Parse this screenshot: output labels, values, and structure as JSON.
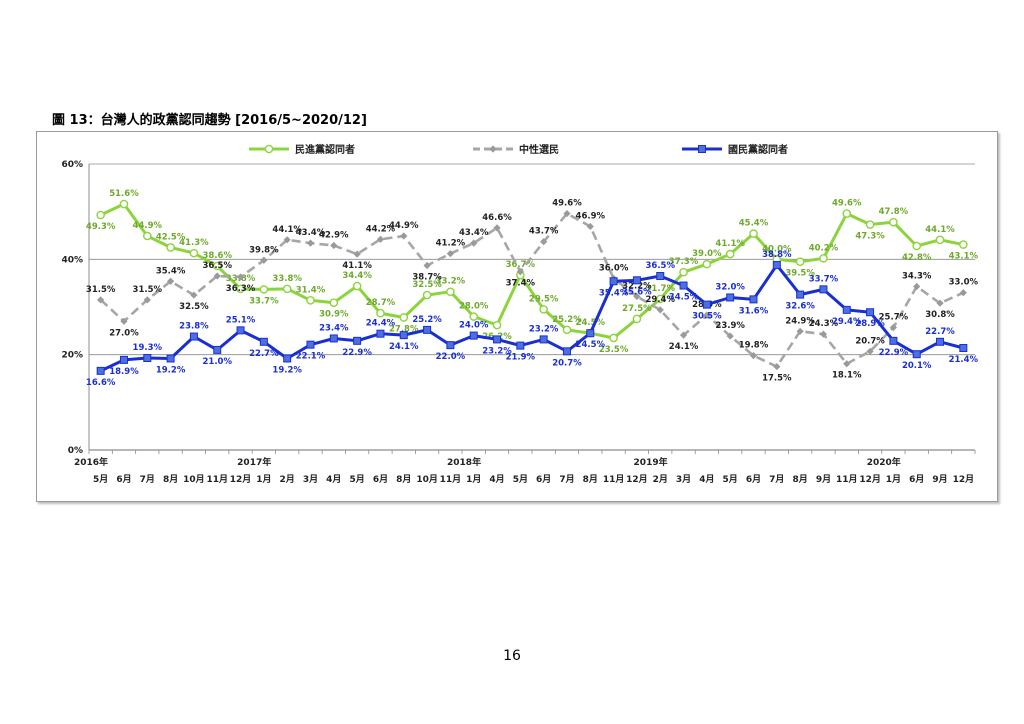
{
  "figure_title": "圖 13：台灣人的政黨認同趨勢 [2016/5~2020/12]",
  "page_number": "16",
  "chart_data": {
    "type": "line",
    "title": "",
    "xlabel": "",
    "ylabel": "",
    "ylim": [
      0,
      60
    ],
    "y_ticks": [
      "0%",
      "20%",
      "40%",
      "60%"
    ],
    "grid": "horizontal",
    "legend_position": "top",
    "x": [
      "5月",
      "6月",
      "7月",
      "8月",
      "10月",
      "11月",
      "12月",
      "1月",
      "2月",
      "3月",
      "4月",
      "5月",
      "6月",
      "8月",
      "10月",
      "11月",
      "1月",
      "4月",
      "5月",
      "6月",
      "7月",
      "8月",
      "11月",
      "12月",
      "2月",
      "3月",
      "4月",
      "5月",
      "6月",
      "7月",
      "8月",
      "9月",
      "11月",
      "12月",
      "1月",
      "6月",
      "9月",
      "12月"
    ],
    "year_labels": [
      {
        "label": "2016年",
        "index": 0
      },
      {
        "label": "2017年",
        "index": 7
      },
      {
        "label": "2018年",
        "index": 16
      },
      {
        "label": "2019年",
        "index": 24
      },
      {
        "label": "2020年",
        "index": 34
      }
    ],
    "series": [
      {
        "name": "民進黨認同者",
        "color": "#8cd43c",
        "marker": "circle",
        "dashed": false,
        "values": [
          49.3,
          51.6,
          44.9,
          42.5,
          41.3,
          38.6,
          33.8,
          33.7,
          33.8,
          31.4,
          30.9,
          34.4,
          28.7,
          27.8,
          32.5,
          33.2,
          28.0,
          26.2,
          36.7,
          29.5,
          25.2,
          24.5,
          23.5,
          27.5,
          31.7,
          37.3,
          39.0,
          41.1,
          45.4,
          40.0,
          39.5,
          40.2,
          49.6,
          47.3,
          47.8,
          42.8,
          44.1,
          43.1
        ],
        "labels": [
          "49.3%",
          "51.6%",
          "44.9%",
          "42.5%",
          "41.3%",
          "38.6%",
          "33.8%",
          "33.7%",
          "33.8%",
          "31.4%",
          "30.9%",
          "34.4%",
          "28.7%",
          "27.8%",
          "32.5%",
          "33.2%",
          "28.0%",
          "26.2%",
          "36.7%",
          "29.5%",
          "25.2%",
          "24.5%",
          "23.5%",
          "27.5%",
          "31.7%",
          "37.3%",
          "39.0%",
          "41.1%",
          "45.4%",
          "40.0%",
          "39.5%",
          "40.2%",
          "49.6%",
          "47.3%",
          "47.8%",
          "42.8%",
          "44.1%",
          "43.1%"
        ],
        "label_color": "#6ea92c"
      },
      {
        "name": "中性選民",
        "color": "#a6a6a6",
        "marker": "diamond",
        "dashed": true,
        "values": [
          31.5,
          27.0,
          31.5,
          35.4,
          32.5,
          36.5,
          36.3,
          39.8,
          44.1,
          43.4,
          42.9,
          41.1,
          44.2,
          44.9,
          38.7,
          41.2,
          43.4,
          46.6,
          37.4,
          43.7,
          49.6,
          46.9,
          36.0,
          32.2,
          29.4,
          24.1,
          28.3,
          23.9,
          19.8,
          17.5,
          24.9,
          24.3,
          18.1,
          20.7,
          25.7,
          34.3,
          30.8,
          33.0
        ],
        "labels": [
          "31.5%",
          "27.0%",
          "31.5%",
          "35.4%",
          "32.5%",
          "36.5%",
          "36.3%",
          "39.8%",
          "44.1%",
          "43.4%",
          "42.9%",
          "41.1%",
          "44.2%",
          "44.9%",
          "38.7%",
          "41.2%",
          "43.4%",
          "46.6%",
          "37.4%",
          "43.7%",
          "49.6%",
          "46.9%",
          "36.0%",
          "32.2%",
          "29.4%",
          "24.1%",
          "28.3%",
          "23.9%",
          "19.8%",
          "17.5%",
          "24.9%",
          "24.3%",
          "18.1%",
          "20.7%",
          "25.7%",
          "34.3%",
          "30.8%",
          "33.0%"
        ],
        "label_color": "#222222"
      },
      {
        "name": "國民黨認同者",
        "color": "#1a2fd1",
        "marker": "square",
        "dashed": false,
        "values": [
          16.6,
          18.9,
          19.3,
          19.2,
          23.8,
          21.0,
          25.1,
          22.7,
          19.2,
          22.1,
          23.4,
          22.9,
          24.4,
          24.1,
          25.2,
          22.0,
          24.0,
          23.2,
          21.9,
          23.2,
          20.7,
          24.5,
          35.4,
          35.6,
          36.5,
          34.5,
          30.5,
          32.0,
          31.6,
          38.8,
          32.6,
          33.7,
          29.4,
          28.9,
          22.9,
          20.1,
          22.7,
          21.4
        ],
        "labels": [
          "16.6%",
          "18.9%",
          "19.3%",
          "19.2%",
          "23.8%",
          "21.0%",
          "25.1%",
          "22.7%",
          "19.2%",
          "22.1%",
          "23.4%",
          "22.9%",
          "24.4%",
          "24.1%",
          "25.2%",
          "22.0%",
          "24.0%",
          "23.2%",
          "21.9%",
          "23.2%",
          "20.7%",
          "24.5%",
          "35.4%",
          "35.6%",
          "36.5%",
          "34.5%",
          "30.5%",
          "32.0%",
          "31.6%",
          "38.8%",
          "32.6%",
          "33.7%",
          "29.4%",
          "28.9%",
          "22.9%",
          "20.1%",
          "22.7%",
          "21.4%"
        ],
        "label_color": "#1a2fd1"
      }
    ]
  }
}
